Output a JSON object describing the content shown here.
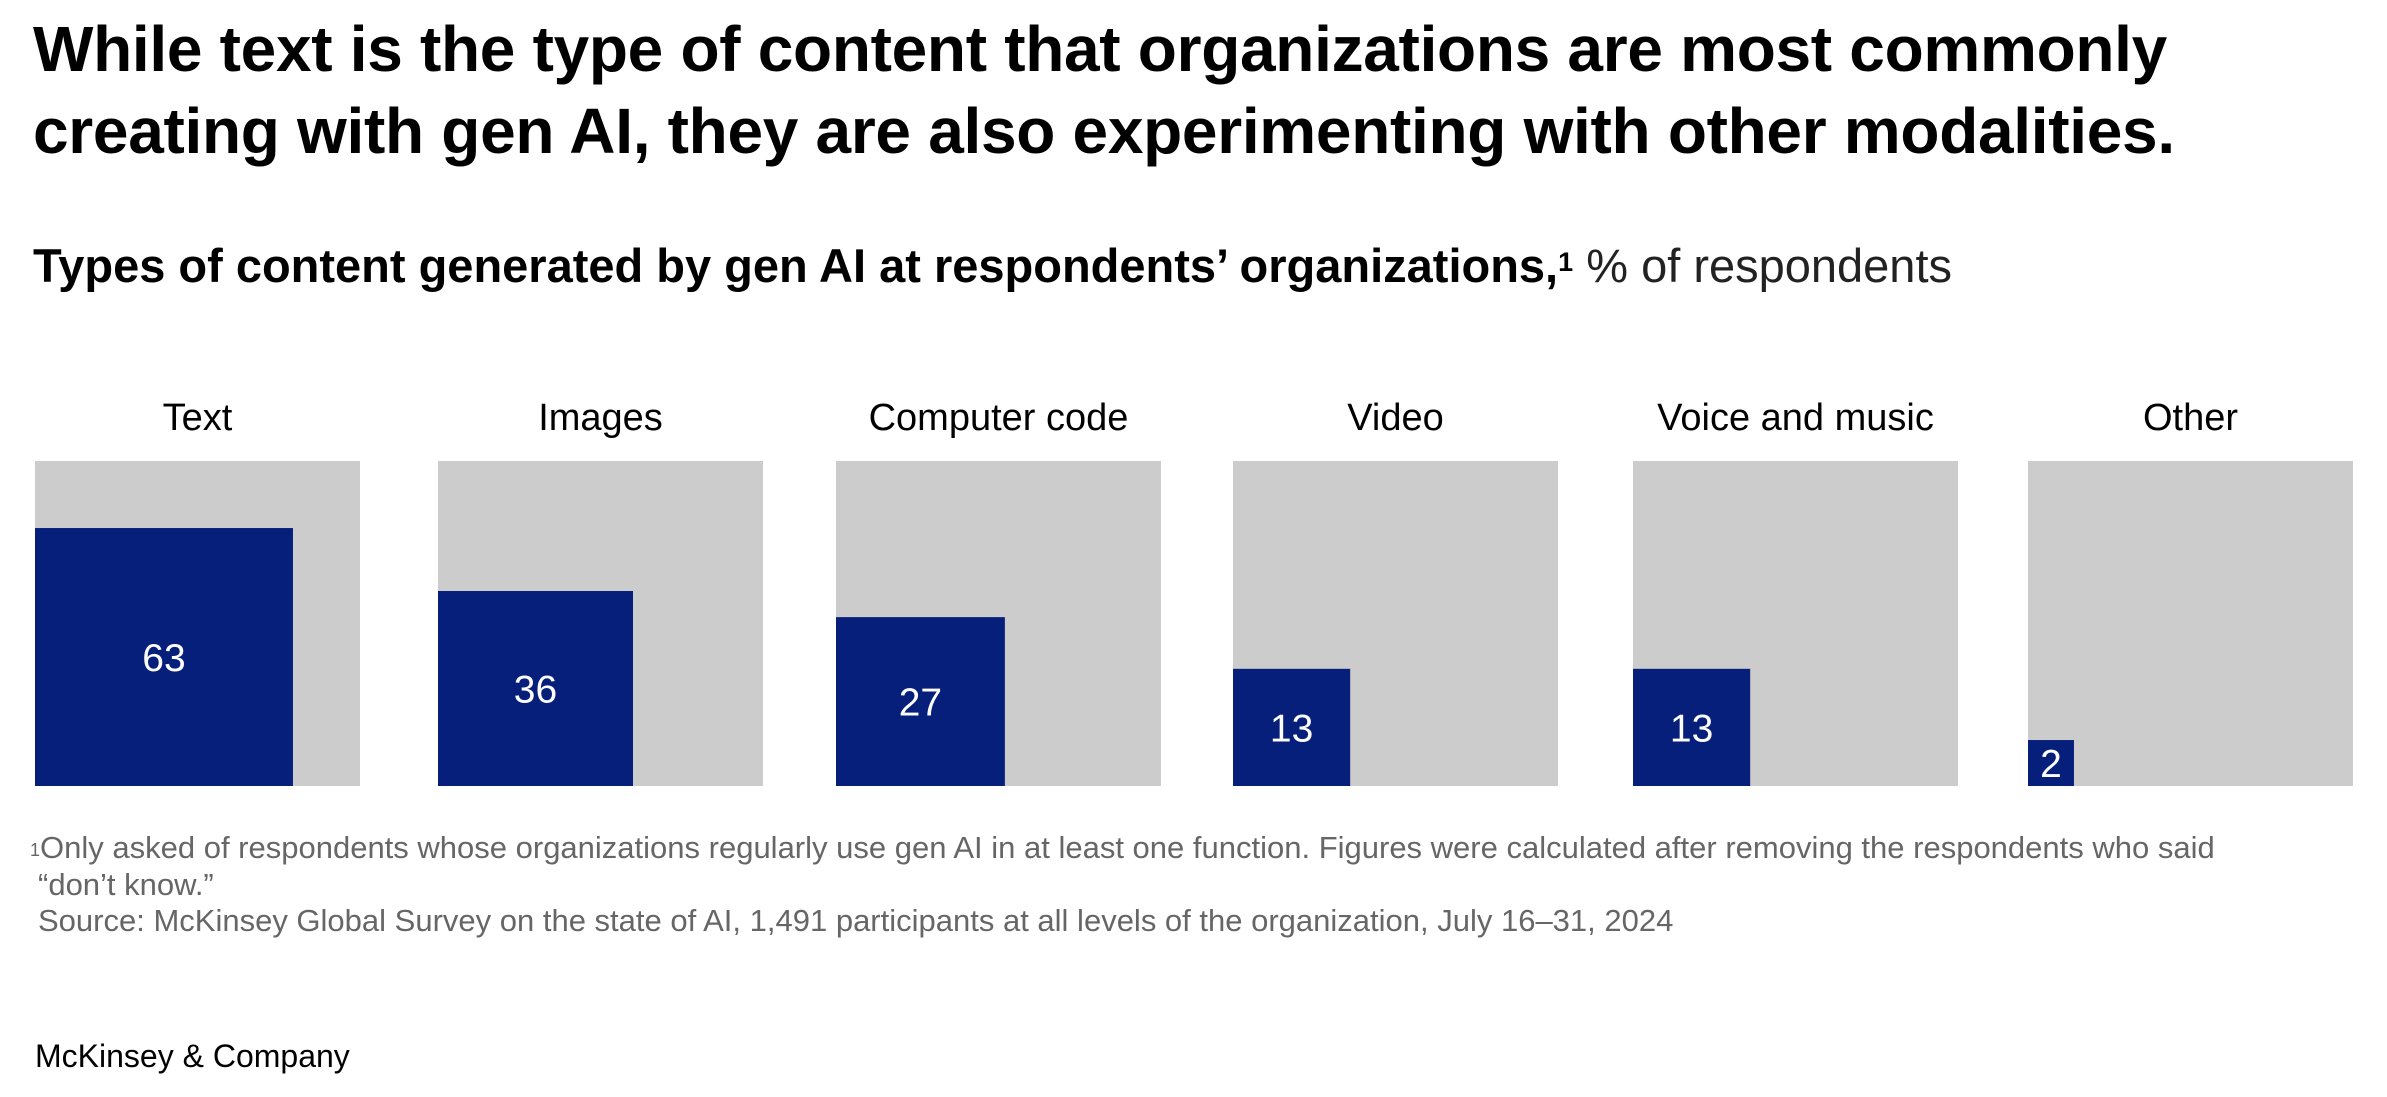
{
  "header": {
    "title": "While text is the type of content that organizations are most commonly creating with gen AI, they are also experimenting with other modalities.",
    "subtitle_bold": "Types of content generated by gen AI at respondents’ organizations,",
    "subtitle_sup": "1",
    "subtitle_unit": " % of respondents"
  },
  "chart_data": {
    "type": "bar",
    "encoding": "proportional-area squares within a 100% background square",
    "title": "Types of content generated by gen AI at respondents’ organizations",
    "unit": "% of respondents",
    "categories": [
      "Text",
      "Images",
      "Computer code",
      "Video",
      "Voice and music",
      "Other"
    ],
    "values": [
      63,
      36,
      27,
      13,
      13,
      2
    ],
    "max": 100,
    "colors": {
      "value": "#051F7A",
      "background": "#CCCCCC",
      "value_label": "#FFFFFF",
      "category_label": "#000000"
    }
  },
  "footnotes": {
    "note_marker": "1",
    "note_line1": "Only asked of respondents whose organizations regularly use gen AI in at least one function. Figures were calculated after removing the respondents who said",
    "note_line2": "“don’t know.”",
    "source": "Source: McKinsey Global Survey on the state of AI, 1,491 participants at all levels of the organization, July 16–31, 2024"
  },
  "brand": "McKinsey & Company"
}
